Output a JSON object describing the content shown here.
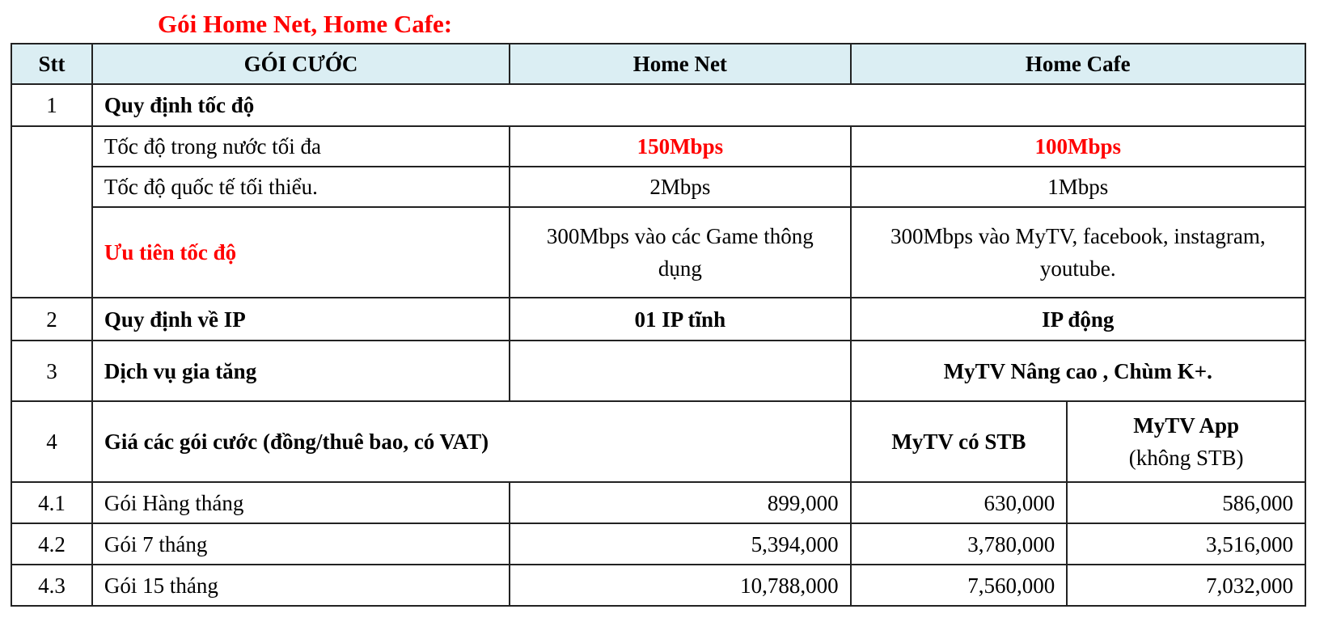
{
  "title": "Gói Home Net, Home Cafe:",
  "header": {
    "stt": "Stt",
    "package": "GÓI CƯỚC",
    "home_net": "Home Net",
    "home_cafe": "Home Cafe"
  },
  "rows": {
    "r1": {
      "stt": "1",
      "label": "Quy định tốc độ"
    },
    "domestic": {
      "label": "Tốc độ trong nước tối đa",
      "home_net": "150Mbps",
      "home_cafe": "100Mbps"
    },
    "intl": {
      "label": "Tốc độ quốc tế tối thiểu.",
      "home_net": "2Mbps",
      "home_cafe": "1Mbps"
    },
    "priority": {
      "label": "Ưu tiên tốc độ",
      "home_net": "300Mbps vào các Game thông dụng",
      "home_cafe": "300Mbps vào MyTV, facebook, instagram, youtube."
    },
    "r2": {
      "stt": "2",
      "label": "Quy định về IP",
      "home_net": "01 IP tĩnh",
      "home_cafe": "IP động"
    },
    "r3": {
      "stt": "3",
      "label": "Dịch vụ gia tăng",
      "home_net": "",
      "home_cafe": "MyTV Nâng cao , Chùm K+."
    },
    "r4": {
      "stt": "4",
      "label": "Giá các gói cước (đồng/thuê bao, có VAT)",
      "stb": "MyTV có STB",
      "app": "MyTV App",
      "app_sub": "(không STB)"
    }
  },
  "prices": [
    {
      "stt": "4.1",
      "label": "Gói Hàng tháng",
      "home_net": "899,000",
      "stb": "630,000",
      "app": "586,000"
    },
    {
      "stt": "4.2",
      "label": "Gói 7 tháng",
      "home_net": "5,394,000",
      "stb": "3,780,000",
      "app": "3,516,000"
    },
    {
      "stt": "4.3",
      "label": "Gói 15 tháng",
      "home_net": "10,788,000",
      "stb": "7,560,000",
      "app": "7,032,000"
    }
  ]
}
